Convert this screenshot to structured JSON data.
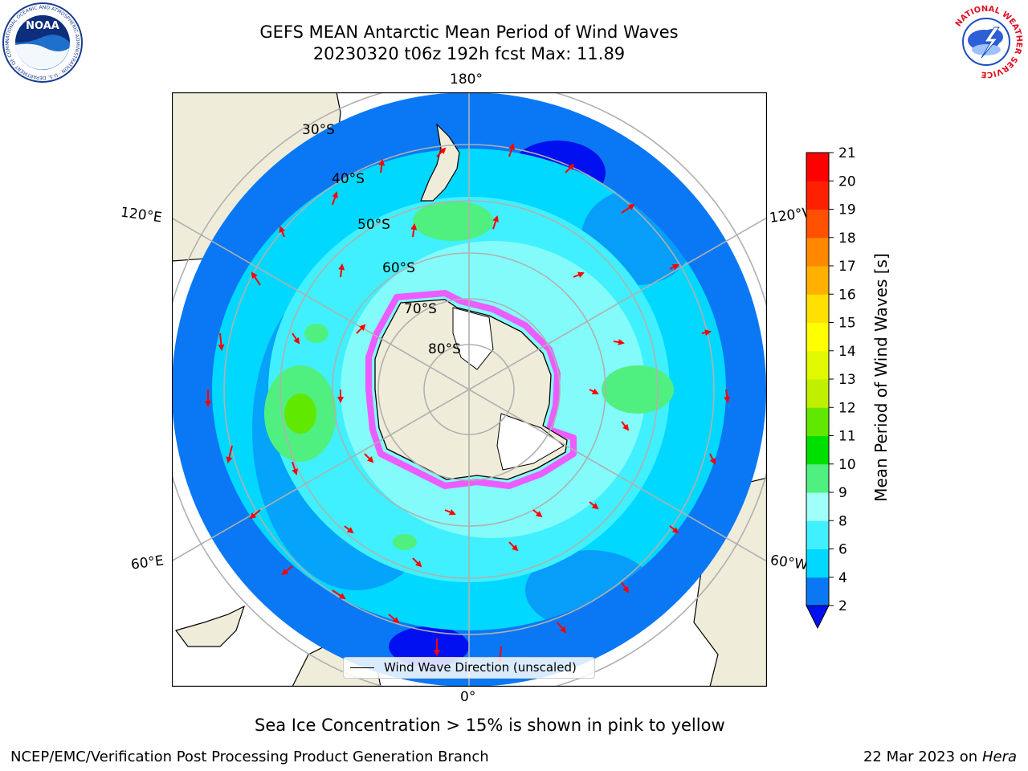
{
  "title_line1": "GEFS MEAN Antarctic Mean Period of Wind Waves",
  "title_line2": "20230320 t06z 192h fcst   Max: 11.89",
  "meridian_labels": {
    "top": "180°",
    "upper_left": "120°E",
    "upper_right": "120°W",
    "lower_left": "60°E",
    "lower_right": "60°W",
    "bottom": "0°"
  },
  "latitude_labels": [
    "30°S",
    "40°S",
    "50°S",
    "60°S",
    "70°S",
    "80°S"
  ],
  "legend_label": "Wind Wave Direction (unscaled)",
  "colorbar": {
    "label": "Mean Period of Wind Waves [s]",
    "ticks": [
      "2",
      "4",
      "6",
      "8",
      "9",
      "10",
      "11",
      "12",
      "13",
      "14",
      "15",
      "16",
      "17",
      "18",
      "19",
      "20",
      "21"
    ],
    "colors": [
      "#0a78f5",
      "#00d8ff",
      "#40f0ff",
      "#a0fff8",
      "#50f080",
      "#00e000",
      "#60e800",
      "#c0f000",
      "#e0f800",
      "#ffff00",
      "#ffe000",
      "#ffb000",
      "#ff8800",
      "#ff5000",
      "#ff2000",
      "#ff0000"
    ],
    "extend_color": "#0010f0"
  },
  "caption": "Sea Ice Concentration > 15% is shown in pink to yellow",
  "footer_left": "NCEP/EMC/Verification Post Processing Product Generation Branch",
  "footer_date": "22 Mar 2023",
  "footer_on": "on",
  "footer_machine": "Hera",
  "logo_noaa_text": "NOAA",
  "logo_nws_ring": "NATIONAL WEATHER SERVICE",
  "logo_noaa_ring": "NATIONAL OCEANIC AND ATMOSPHERIC ADMINISTRATION · U.S. DEPARTMENT OF COMMERCE"
}
